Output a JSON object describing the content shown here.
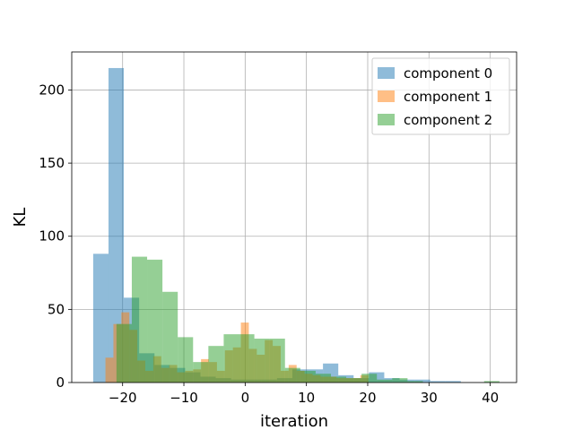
{
  "chart_data": {
    "type": "histogram",
    "xlabel": "iteration",
    "ylabel": "KL",
    "xlim": [
      -28.3,
      44.3
    ],
    "ylim": [
      0,
      226
    ],
    "xticks": [
      -20,
      -10,
      0,
      10,
      20,
      30,
      40
    ],
    "yticks": [
      0,
      50,
      100,
      150,
      200
    ],
    "xtick_labels": [
      "−20",
      "−10",
      "0",
      "10",
      "20",
      "30",
      "40"
    ],
    "ytick_labels": [
      "0",
      "50",
      "100",
      "150",
      "200"
    ],
    "grid": true,
    "legend_position": "top-right",
    "series": [
      {
        "name": "component 0",
        "color": "#1f77b4",
        "alpha": 0.5,
        "bin_edges": [
          -24.8,
          -22.3,
          -19.8,
          -17.3,
          -14.8,
          -12.3,
          -9.8,
          -7.3,
          -4.8,
          -2.3,
          0.2,
          2.7,
          5.2,
          7.7,
          10.2,
          12.7,
          15.2,
          17.7,
          20.2,
          22.7,
          25.2,
          27.7,
          30.2,
          32.7,
          35.2
        ],
        "counts": [
          88,
          215,
          58,
          20,
          12,
          10,
          7,
          4,
          3,
          2,
          2,
          2,
          3,
          9,
          9,
          13,
          5,
          3,
          7,
          3,
          2,
          2,
          1,
          1
        ]
      },
      {
        "name": "component 1",
        "color": "#ff7f0e",
        "alpha": 0.5,
        "bin_edges": [
          -22.8,
          -21.5,
          -20.2,
          -18.9,
          -17.6,
          -16.3,
          -15.0,
          -13.7,
          -12.4,
          -11.1,
          -9.8,
          -8.5,
          -7.2,
          -5.9,
          -4.6,
          -3.3,
          -2.0,
          -0.7,
          0.6,
          1.9,
          3.2,
          4.5,
          5.8,
          7.1,
          8.4,
          9.7,
          11.0,
          12.3,
          13.6,
          14.9,
          16.2,
          17.5,
          18.8,
          20.1
        ],
        "counts": [
          17,
          40,
          48,
          36,
          15,
          8,
          18,
          10,
          12,
          7,
          8,
          9,
          16,
          14,
          8,
          22,
          24,
          41,
          23,
          19,
          29,
          25,
          8,
          12,
          8,
          6,
          5,
          4,
          4,
          3,
          3,
          3,
          5
        ]
      },
      {
        "name": "component 2",
        "color": "#2ca02c",
        "alpha": 0.5,
        "bin_edges": [
          -21.0,
          -18.5,
          -16.0,
          -13.5,
          -11.0,
          -8.5,
          -6.0,
          -3.5,
          -1.0,
          1.5,
          4.0,
          6.5,
          9.0,
          11.5,
          14.0,
          16.5,
          19.0,
          21.5,
          24.0,
          26.5,
          29.0,
          31.5,
          34.0,
          36.5,
          39.0,
          41.5
        ],
        "counts": [
          40,
          86,
          84,
          62,
          31,
          14,
          25,
          33,
          33,
          30,
          30,
          10,
          8,
          6,
          4,
          3,
          6,
          2,
          3,
          1,
          0,
          0,
          0,
          0,
          1
        ]
      }
    ]
  }
}
